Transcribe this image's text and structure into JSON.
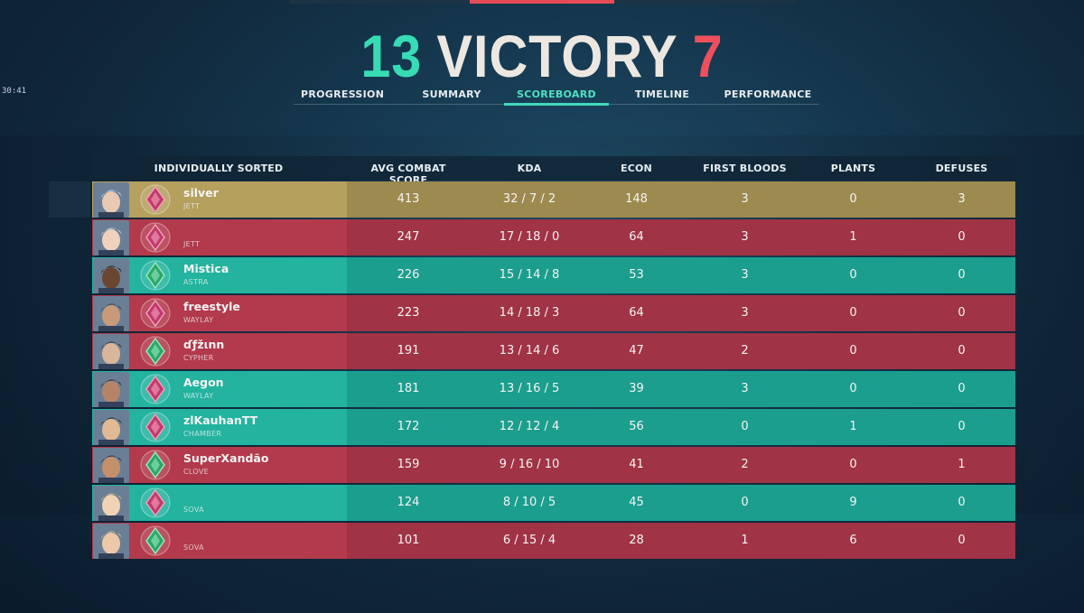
{
  "timer": "30:41",
  "match": {
    "ally_score": "13",
    "result": "VICTORY",
    "enemy_score": "7"
  },
  "tabs": [
    "PROGRESSION",
    "SUMMARY",
    "SCOREBOARD",
    "TIMELINE",
    "PERFORMANCE"
  ],
  "active_tab": "SCOREBOARD",
  "header": {
    "sort": "INDIVIDUALLY SORTED",
    "acs": "AVG COMBAT SCORE",
    "kda": "KDA",
    "econ": "ECON",
    "first_bloods": "FIRST BLOODS",
    "plants": "PLANTS",
    "defuses": "DEFUSES"
  },
  "colors": {
    "ally": "#1c9e8e",
    "enemy": "#a03345",
    "self": "#9d8a4f",
    "ally_accent": "#37dcb4",
    "enemy_accent": "#ef4f5d"
  },
  "players": [
    {
      "name": "silver",
      "agent": "JETT",
      "team": "self",
      "rank_icon": "pink-rank-icon",
      "acs": "413",
      "kda": "32 / 7 / 2",
      "econ": "148",
      "first_bloods": "3",
      "plants": "0",
      "defuses": "3"
    },
    {
      "name": "",
      "agent": "JETT",
      "team": "enemy",
      "rank_icon": "pink-rank-icon",
      "acs": "247",
      "kda": "17 / 18 / 0",
      "econ": "64",
      "first_bloods": "3",
      "plants": "1",
      "defuses": "0"
    },
    {
      "name": "Mistica",
      "agent": "ASTRA",
      "team": "ally",
      "rank_icon": "green-rank-icon",
      "acs": "226",
      "kda": "15 / 14 / 8",
      "econ": "53",
      "first_bloods": "3",
      "plants": "0",
      "defuses": "0"
    },
    {
      "name": "freestyle",
      "agent": "WAYLAY",
      "team": "enemy",
      "rank_icon": "pink-rank-icon",
      "acs": "223",
      "kda": "14 / 18 / 3",
      "econ": "64",
      "first_bloods": "3",
      "plants": "0",
      "defuses": "0"
    },
    {
      "name": "ɗƒžιnn",
      "agent": "CYPHER",
      "team": "enemy",
      "rank_icon": "green-rank-icon",
      "acs": "191",
      "kda": "13 / 14 / 6",
      "econ": "47",
      "first_bloods": "2",
      "plants": "0",
      "defuses": "0"
    },
    {
      "name": "Aegon",
      "agent": "WAYLAY",
      "team": "ally",
      "rank_icon": "pink-rank-icon",
      "acs": "181",
      "kda": "13 / 16 / 5",
      "econ": "39",
      "first_bloods": "3",
      "plants": "0",
      "defuses": "0"
    },
    {
      "name": "zlKauhanTT",
      "agent": "CHAMBER",
      "team": "ally",
      "rank_icon": "pink-rank-icon",
      "acs": "172",
      "kda": "12 / 12 / 4",
      "econ": "56",
      "first_bloods": "0",
      "plants": "1",
      "defuses": "0"
    },
    {
      "name": "SuperXandão",
      "agent": "CLOVE",
      "team": "enemy",
      "rank_icon": "green-rank-icon",
      "acs": "159",
      "kda": "9 / 16 / 10",
      "econ": "41",
      "first_bloods": "2",
      "plants": "0",
      "defuses": "1"
    },
    {
      "name": "",
      "agent": "SOVA",
      "team": "ally",
      "rank_icon": "pink-rank-icon",
      "acs": "124",
      "kda": "8 / 10 / 5",
      "econ": "45",
      "first_bloods": "0",
      "plants": "9",
      "defuses": "0"
    },
    {
      "name": "",
      "agent": "SOVA",
      "team": "enemy",
      "rank_icon": "green-rank-icon",
      "acs": "101",
      "kda": "6 / 15 / 4",
      "econ": "28",
      "first_bloods": "1",
      "plants": "6",
      "defuses": "0"
    }
  ]
}
